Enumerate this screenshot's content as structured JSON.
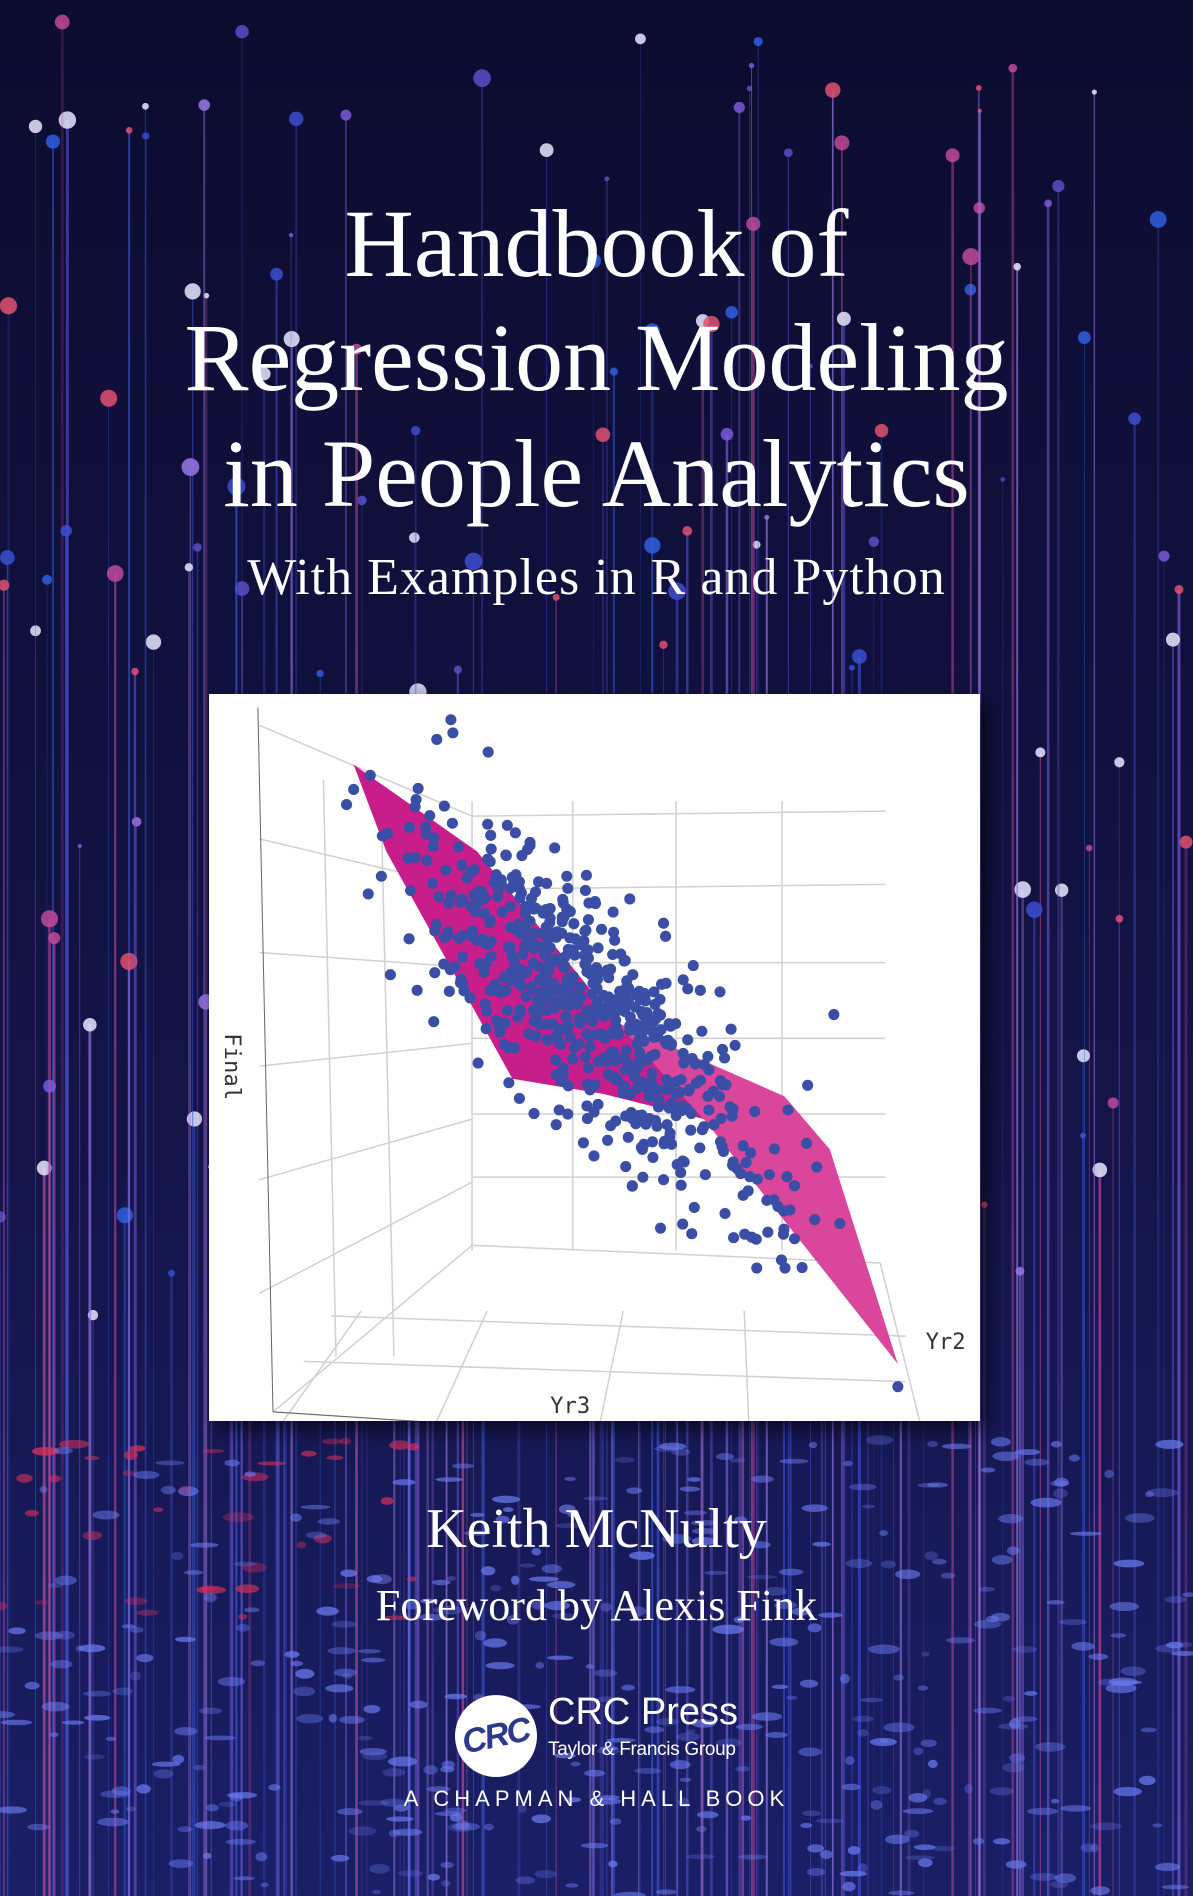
{
  "cover": {
    "title_lines": [
      "Handbook of",
      "Regression Modeling",
      "in People Analytics"
    ],
    "subtitle": "With Examples in R and Python",
    "author": "Keith McNulty",
    "foreword": "Foreword by Alexis Fink"
  },
  "figure": {
    "axis_labels": {
      "z": "Final",
      "x": "Yr3",
      "y": "Yr2"
    },
    "point_color": "#3a4ea6",
    "plane_colors": [
      "#c81e8c",
      "#d9469c"
    ]
  },
  "publisher": {
    "logo_text": "CRC",
    "name": "CRC Press",
    "group": "Taylor & Francis Group",
    "imprint": "A CHAPMAN & HALL BOOK"
  },
  "colors": {
    "background": "#10103a",
    "text": "#ffffff"
  }
}
